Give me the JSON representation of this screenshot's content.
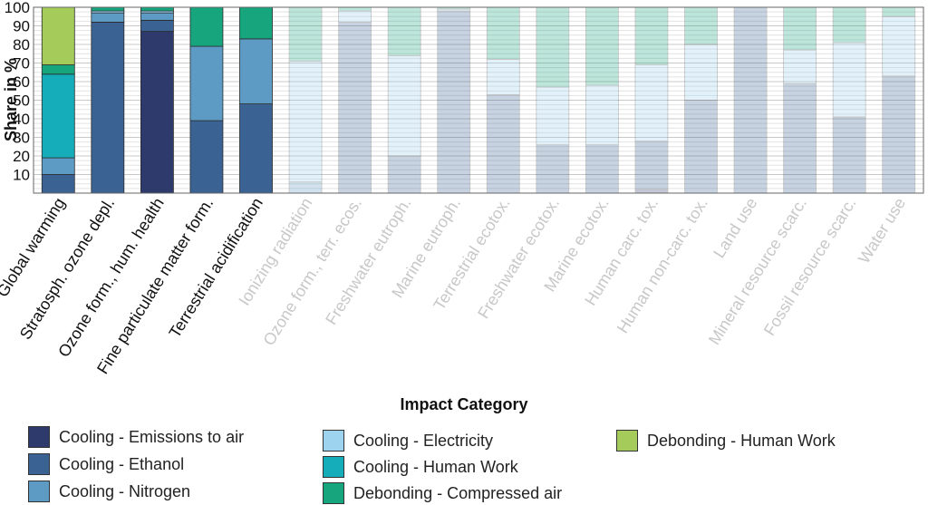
{
  "chart_data": {
    "type": "bar",
    "stacked": true,
    "title": "",
    "xlabel": "Impact Category",
    "ylabel": "Share in %",
    "ylim": [
      0,
      100
    ],
    "yticks": [
      10,
      20,
      30,
      40,
      50,
      60,
      70,
      80,
      90,
      100
    ],
    "grid": true,
    "legend_position": "bottom",
    "categories": [
      "Global warming",
      "Stratosph. ozone depl.",
      "Ozone form., hum. health",
      "Fine particulate matter form.",
      "Terrestrial acidification",
      "Ionizing radiation",
      "Ozone form., terr. ecos.",
      "Freshwater eutroph.",
      "Marine eutroph.",
      "Terrestrial ecotox.",
      "Freshwater ecotox.",
      "Marine ecotox.",
      "Human carc. tox.",
      "Human non-carc. tox.",
      "Land use",
      "Mineral resource scarc.",
      "Fossil resource scarc.",
      "Water use"
    ],
    "highlighted_categories": [
      0,
      1,
      2,
      3,
      4
    ],
    "series": [
      {
        "name": "Cooling - Emissions to air",
        "color": "#2e3a6b",
        "values": [
          0,
          0,
          87,
          0,
          0,
          0,
          0,
          0,
          0,
          0,
          0,
          0,
          2,
          0,
          0,
          0,
          0,
          0
        ]
      },
      {
        "name": "Cooling - Ethanol",
        "color": "#3a6394",
        "values": [
          10,
          92,
          6,
          39,
          48,
          0,
          92,
          20,
          98,
          53,
          26,
          26,
          26,
          50,
          100,
          59,
          41,
          63
        ]
      },
      {
        "name": "Cooling - Nitrogen",
        "color": "#5d9bc4",
        "values": [
          9,
          5,
          4,
          40,
          35,
          6,
          0,
          0,
          0,
          0,
          0,
          0,
          0,
          0,
          0,
          0,
          0,
          0
        ]
      },
      {
        "name": "Cooling - Electricity",
        "color": "#9ed3ef",
        "values": [
          0,
          1,
          1,
          0,
          0,
          65,
          6,
          54,
          1,
          19,
          31,
          32,
          41,
          30,
          0,
          18,
          40,
          32
        ]
      },
      {
        "name": "Cooling - Human Work",
        "color": "#15adb9",
        "values": [
          45,
          0,
          0,
          0,
          0,
          0,
          0,
          0,
          0,
          0,
          0,
          0,
          0,
          0,
          0,
          0,
          0,
          0
        ]
      },
      {
        "name": "Debonding - Compressed air",
        "color": "#17a57d",
        "values": [
          5,
          2,
          2,
          21,
          17,
          29,
          2,
          26,
          1,
          28,
          43,
          42,
          31,
          20,
          0,
          23,
          19,
          5
        ]
      },
      {
        "name": "Debonding - Human Work",
        "color": "#a5cc5b",
        "values": [
          31,
          0,
          0,
          0,
          0,
          0,
          0,
          0,
          0,
          0,
          0,
          0,
          0,
          0,
          0,
          0,
          0,
          0
        ]
      }
    ]
  }
}
